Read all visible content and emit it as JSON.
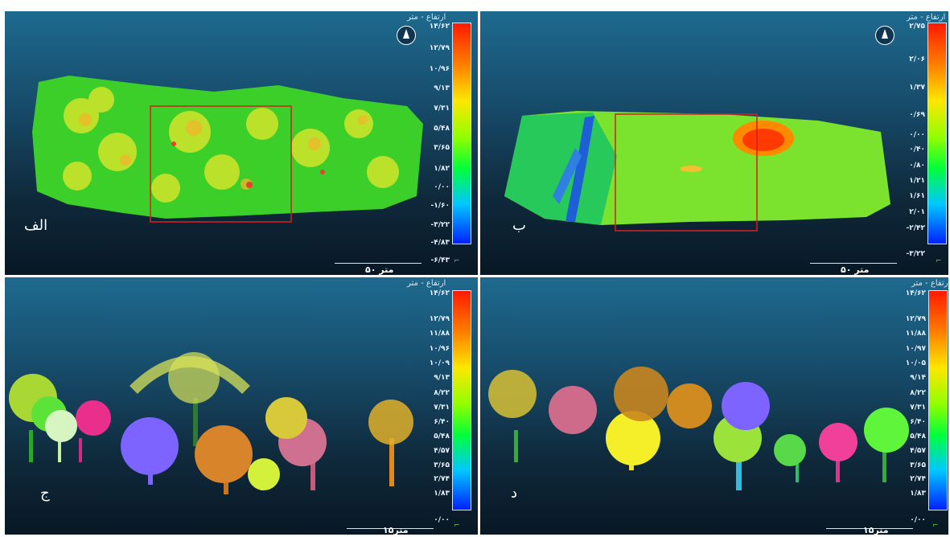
{
  "figure": {
    "height_label": "ارتفاع - متر",
    "panels": [
      {
        "id": "alef",
        "letter": "الف",
        "scale_text": "۵۰ متر",
        "ticks": [
          "۱۴/۶۲",
          "۱۲/۷۹",
          "۱۰/۹۶",
          "۹/۱۳",
          "۷/۳۱",
          "۵/۴۸",
          "۳/۶۵",
          "۱/۸۲",
          "۰/۰۰",
          "-۱/۶۰",
          "-۳/۲۲",
          "-۴/۸۳",
          "-۶/۴۳"
        ],
        "icons": [
          "compass-icon",
          "axes-icon"
        ]
      },
      {
        "id": "be",
        "letter": "ب",
        "scale_text": "۵۰ متر",
        "ticks": [
          "۲/۷۵",
          "۲/۰۶",
          "۱/۳۷",
          "۰/۶۹",
          "۰/۰۰",
          "۰/۴۰",
          "۰/۸۰",
          "۱/۲۱",
          "۱/۶۱",
          "۲/۰۱",
          "-۲/۴۲",
          "-۳/۲۲"
        ],
        "icons": [
          "compass-icon",
          "axes-icon"
        ]
      },
      {
        "id": "jim",
        "letter": "ج",
        "scale_text": "۱۵متر",
        "ticks": [
          "۱۴/۶۲",
          "۱۲/۷۹",
          "۱۱/۸۸",
          "۱۰/۹۶",
          "۱۰/۰۹",
          "۹/۱۳",
          "۸/۲۲",
          "۷/۳۱",
          "۶/۴۰",
          "۵/۴۸",
          "۴/۵۷",
          "۳/۶۵",
          "۲/۷۴",
          "۱/۸۳",
          "۰/۰۰"
        ],
        "icons": [
          "axes-icon"
        ]
      },
      {
        "id": "dal",
        "letter": "د",
        "scale_text": "۱۵متر",
        "ticks": [
          "۱۴/۶۲",
          "۱۲/۷۹",
          "۱۱/۸۸",
          "۱۰/۹۷",
          "۱۰/۰۵",
          "۹/۱۴",
          "۸/۲۲",
          "۷/۳۱",
          "۶/۴۰",
          "۵/۴۸",
          "۴/۵۷",
          "۳/۶۵",
          "۲/۷۴",
          "۱/۸۳",
          "۰/۰۰"
        ],
        "icons": [
          "axes-icon"
        ]
      }
    ]
  }
}
